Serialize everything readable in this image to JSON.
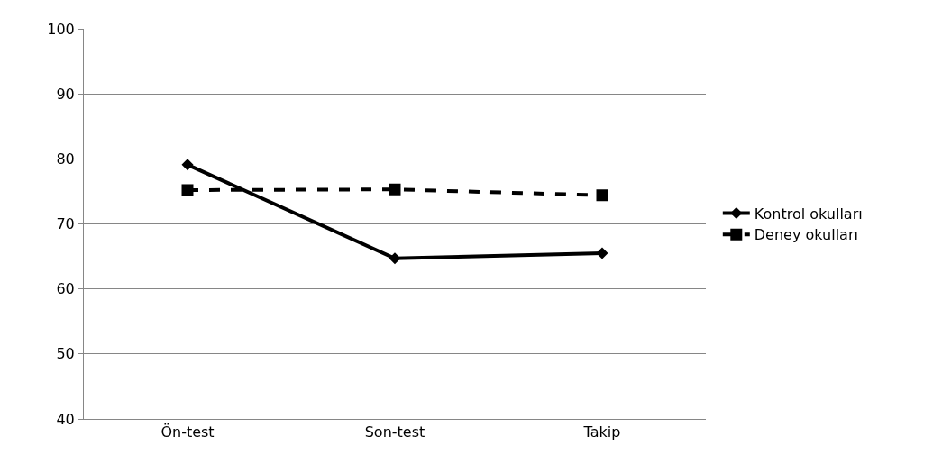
{
  "chart_data": {
    "type": "line",
    "categories": [
      "Ön-test",
      "Son-test",
      "Takip"
    ],
    "series": [
      {
        "name": "Kontrol okulları",
        "color": "#000000",
        "values": [
          79.1,
          64.7,
          65.5
        ],
        "marker": "diamond",
        "line_style": "solid"
      },
      {
        "name": "Deney okulları",
        "color": "#000000",
        "values": [
          75.2,
          75.3,
          74.4
        ],
        "marker": "square",
        "line_style": "dashed"
      }
    ],
    "ylim": [
      40,
      100
    ],
    "yticks": [
      40,
      50,
      60,
      70,
      80,
      90,
      100
    ],
    "grid": "y",
    "legend": "right"
  }
}
